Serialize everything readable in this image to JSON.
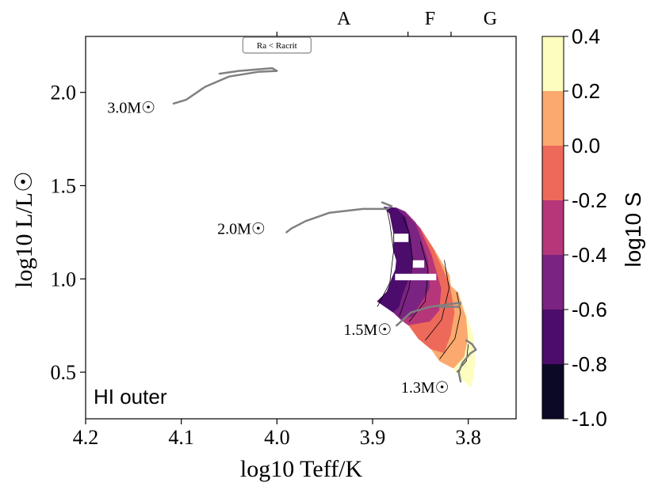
{
  "chart_data": {
    "type": "heatmap",
    "panel_label": "HI outer",
    "xlabel": "log10 Teff/K",
    "ylabel": "log10 L/L☉",
    "xlim": [
      4.2,
      3.75
    ],
    "ylim": [
      0.25,
      2.3
    ],
    "x_ticks": [
      {
        "value": 4.2,
        "label": "4.2"
      },
      {
        "value": 4.1,
        "label": "4.1"
      },
      {
        "value": 4.0,
        "label": "4.0"
      },
      {
        "value": 3.9,
        "label": "3.9"
      },
      {
        "value": 3.8,
        "label": "3.8"
      }
    ],
    "y_ticks": [
      {
        "value": 0.5,
        "label": "0.5"
      },
      {
        "value": 1.0,
        "label": "1.0"
      },
      {
        "value": 1.5,
        "label": "1.5"
      },
      {
        "value": 2.0,
        "label": "2.0"
      }
    ],
    "spectral_boundaries": [
      4.0,
      3.863,
      3.818
    ],
    "spectral_classes": [
      {
        "label": "A",
        "x": 3.93
      },
      {
        "label": "F",
        "x": 3.84
      },
      {
        "label": "G",
        "x": 3.777
      }
    ],
    "badge": {
      "label": "Ra < Racrit",
      "x": 4.0
    },
    "colorbar": {
      "title": "log10 S",
      "range": [
        -1.0,
        0.4
      ],
      "levels": [
        -1.0,
        -0.8,
        -0.6,
        -0.4,
        -0.2,
        0.0,
        0.2,
        0.4
      ],
      "labels": [
        "-1.0",
        "-0.8",
        "-0.6",
        "-0.4",
        "-0.2",
        "0.0",
        "0.2",
        "0.4"
      ],
      "colors": [
        "#0c0927",
        "#4b0c6b",
        "#7b2382",
        "#b5367a",
        "#ed6a5a",
        "#fba96e",
        "#fcfdbf"
      ]
    },
    "tracks": [
      {
        "label": "3.0M☉",
        "mass": 3.0,
        "label_pos": [
          4.127,
          1.92
        ],
        "points": [
          [
            4.108,
            1.94
          ],
          [
            4.095,
            1.96
          ],
          [
            4.075,
            2.03
          ],
          [
            4.05,
            2.085
          ],
          [
            4.02,
            2.11
          ],
          [
            4.0,
            2.115
          ],
          [
            4.005,
            2.13
          ],
          [
            4.04,
            2.115
          ],
          [
            4.06,
            2.1
          ]
        ]
      },
      {
        "label": "2.0M☉",
        "mass": 2.0,
        "label_pos": [
          4.012,
          1.27
        ],
        "points": [
          [
            3.99,
            1.25
          ],
          [
            3.985,
            1.27
          ],
          [
            3.97,
            1.31
          ],
          [
            3.945,
            1.355
          ],
          [
            3.91,
            1.375
          ],
          [
            3.885,
            1.375
          ],
          [
            3.88,
            1.39
          ],
          [
            3.89,
            1.41
          ]
        ]
      },
      {
        "label": "1.5M☉",
        "mass": 1.5,
        "label_pos": [
          3.88,
          0.73
        ],
        "points": [
          [
            3.875,
            0.75
          ],
          [
            3.86,
            0.82
          ],
          [
            3.84,
            0.85
          ],
          [
            3.82,
            0.865
          ],
          [
            3.808,
            0.872
          ],
          [
            3.81,
            0.85
          ],
          [
            3.83,
            0.85
          ]
        ]
      },
      {
        "label": "1.3M☉",
        "mass": 1.3,
        "label_pos": [
          3.82,
          0.42
        ],
        "points": [
          [
            3.808,
            0.45
          ],
          [
            3.81,
            0.5
          ],
          [
            3.806,
            0.55
          ],
          [
            3.798,
            0.6
          ],
          [
            3.792,
            0.62
          ],
          [
            3.796,
            0.65
          ],
          [
            3.802,
            0.67
          ]
        ]
      }
    ],
    "regions": [
      {
        "level": -0.7,
        "polygon": [
          [
            3.895,
            0.88
          ],
          [
            3.885,
            0.93
          ],
          [
            3.88,
            1.0
          ],
          [
            3.876,
            1.05
          ],
          [
            3.875,
            1.1
          ],
          [
            3.878,
            1.15
          ],
          [
            3.878,
            1.25
          ],
          [
            3.882,
            1.35
          ],
          [
            3.888,
            1.385
          ],
          [
            3.875,
            1.38
          ],
          [
            3.865,
            1.33
          ],
          [
            3.86,
            1.22
          ],
          [
            3.858,
            1.1
          ],
          [
            3.862,
            1.0
          ],
          [
            3.868,
            0.92
          ],
          [
            3.872,
            0.85
          ],
          [
            3.878,
            0.82
          ]
        ]
      },
      {
        "level": -0.5,
        "polygon": [
          [
            3.875,
            1.38
          ],
          [
            3.865,
            1.33
          ],
          [
            3.86,
            1.22
          ],
          [
            3.858,
            1.1
          ],
          [
            3.862,
            1.0
          ],
          [
            3.868,
            0.92
          ],
          [
            3.872,
            0.85
          ],
          [
            3.878,
            0.82
          ],
          [
            3.87,
            0.78
          ],
          [
            3.858,
            0.8
          ],
          [
            3.848,
            0.88
          ],
          [
            3.84,
            0.95
          ],
          [
            3.842,
            1.1
          ],
          [
            3.848,
            1.2
          ],
          [
            3.855,
            1.3
          ],
          [
            3.866,
            1.36
          ]
        ]
      },
      {
        "level": -0.3,
        "polygon": [
          [
            3.866,
            1.36
          ],
          [
            3.855,
            1.3
          ],
          [
            3.848,
            1.2
          ],
          [
            3.842,
            1.1
          ],
          [
            3.84,
            0.95
          ],
          [
            3.848,
            0.88
          ],
          [
            3.858,
            0.8
          ],
          [
            3.87,
            0.78
          ],
          [
            3.862,
            0.75
          ],
          [
            3.84,
            0.77
          ],
          [
            3.83,
            0.83
          ],
          [
            3.828,
            0.95
          ],
          [
            3.838,
            1.13
          ],
          [
            3.85,
            1.27
          ]
        ]
      },
      {
        "level": -0.1,
        "polygon": [
          [
            3.85,
            1.27
          ],
          [
            3.838,
            1.13
          ],
          [
            3.828,
            0.95
          ],
          [
            3.83,
            0.83
          ],
          [
            3.84,
            0.77
          ],
          [
            3.862,
            0.75
          ],
          [
            3.852,
            0.68
          ],
          [
            3.838,
            0.62
          ],
          [
            3.825,
            0.6
          ],
          [
            3.818,
            0.7
          ],
          [
            3.814,
            0.82
          ],
          [
            3.818,
            0.94
          ],
          [
            3.82,
            1.02
          ],
          [
            3.835,
            1.15
          ]
        ]
      },
      {
        "level": 0.1,
        "polygon": [
          [
            3.835,
            1.15
          ],
          [
            3.82,
            1.02
          ],
          [
            3.818,
            0.94
          ],
          [
            3.814,
            0.82
          ],
          [
            3.818,
            0.7
          ],
          [
            3.825,
            0.6
          ],
          [
            3.838,
            0.62
          ],
          [
            3.83,
            0.56
          ],
          [
            3.815,
            0.52
          ],
          [
            3.804,
            0.58
          ],
          [
            3.8,
            0.68
          ],
          [
            3.802,
            0.8
          ],
          [
            3.81,
            0.92
          ],
          [
            3.818,
            0.96
          ]
        ]
      },
      {
        "level": 0.3,
        "polygon": [
          [
            3.81,
            0.92
          ],
          [
            3.802,
            0.8
          ],
          [
            3.8,
            0.68
          ],
          [
            3.804,
            0.58
          ],
          [
            3.815,
            0.52
          ],
          [
            3.808,
            0.47
          ],
          [
            3.797,
            0.42
          ],
          [
            3.795,
            0.48
          ],
          [
            3.793,
            0.55
          ],
          [
            3.795,
            0.7
          ],
          [
            3.805,
            0.84
          ]
        ]
      }
    ],
    "contours": [
      [
        [
          3.895,
          0.85
        ],
        [
          3.882,
          0.98
        ],
        [
          3.878,
          1.15
        ],
        [
          3.882,
          1.3
        ],
        [
          3.885,
          1.37
        ]
      ],
      [
        [
          3.872,
          0.8
        ],
        [
          3.862,
          0.95
        ],
        [
          3.858,
          1.1
        ],
        [
          3.862,
          1.25
        ],
        [
          3.868,
          1.33
        ]
      ],
      [
        [
          3.862,
          0.77
        ],
        [
          3.845,
          0.88
        ],
        [
          3.842,
          1.05
        ],
        [
          3.85,
          1.2
        ]
      ],
      [
        [
          3.845,
          0.67
        ],
        [
          3.828,
          0.78
        ],
        [
          3.82,
          0.95
        ],
        [
          3.825,
          1.1
        ]
      ],
      [
        [
          3.83,
          0.57
        ],
        [
          3.814,
          0.68
        ],
        [
          3.808,
          0.82
        ],
        [
          3.812,
          0.93
        ]
      ],
      [
        [
          3.812,
          0.5
        ],
        [
          3.802,
          0.56
        ],
        [
          3.8,
          0.65
        ]
      ]
    ],
    "gaps": [
      {
        "center": [
          3.855,
          1.01
        ],
        "width": 0.043,
        "height": 0.035
      },
      {
        "center": [
          3.852,
          1.08
        ],
        "width": 0.012,
        "height": 0.04
      },
      {
        "center": [
          3.87,
          1.22
        ],
        "width": 0.015,
        "height": 0.045
      }
    ]
  }
}
